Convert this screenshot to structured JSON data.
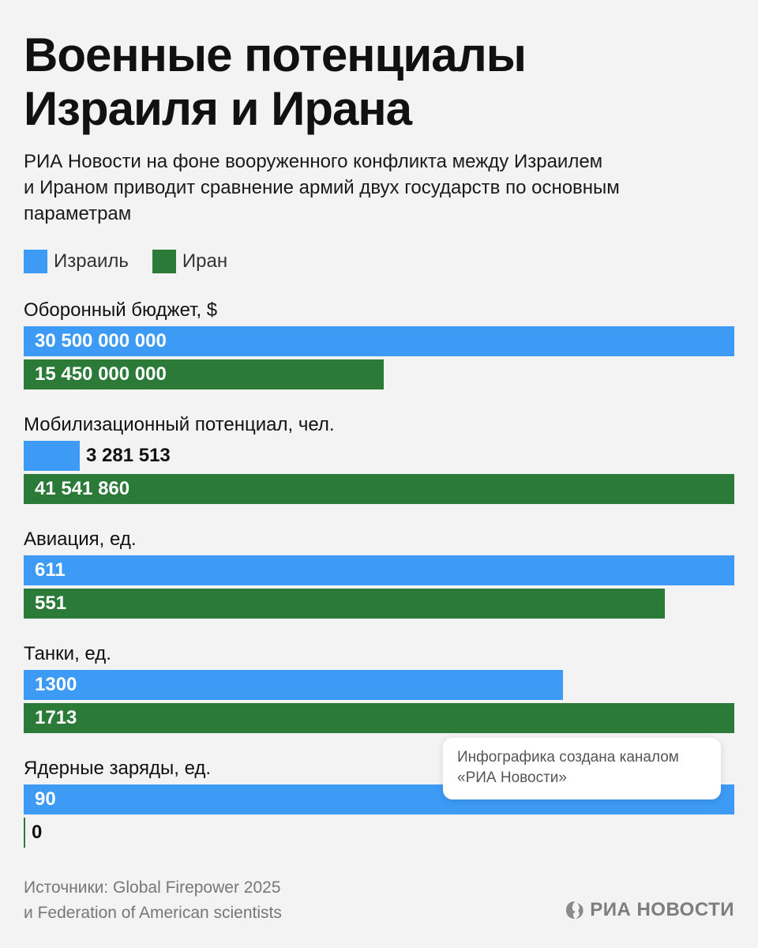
{
  "title_lines": [
    "Военные потенциалы",
    "Израиля и Ирана"
  ],
  "subtitle_lines": [
    "РИА Новости на фоне вооруженного конфликта между Израилем",
    "и Ираном приводит сравнение армий двух государств по основным",
    "параметрам"
  ],
  "colors": {
    "israel": "#3d9bf5",
    "iran": "#2b7a37",
    "background": "#f3f3f3"
  },
  "chart_data": {
    "type": "bar",
    "orientation": "horizontal",
    "legend_position": "top-left",
    "grid": false,
    "series": [
      {
        "name": "Израиль",
        "color": "#3d9bf5"
      },
      {
        "name": "Иран",
        "color": "#2b7a37"
      }
    ],
    "groups": [
      {
        "label": "Оборонный бюджет, $",
        "values": [
          30500000000,
          15450000000
        ],
        "labels": [
          "30 500 000 000",
          "15 450 000 000"
        ]
      },
      {
        "label": "Мобилизационный потенциал, чел.",
        "values": [
          3281513,
          41541860
        ],
        "labels": [
          "3 281 513",
          "41 541 860"
        ]
      },
      {
        "label": "Авиация, ед.",
        "values": [
          611,
          551
        ],
        "labels": [
          "611",
          "551"
        ]
      },
      {
        "label": "Танки, ед.",
        "values": [
          1300,
          1713
        ],
        "labels": [
          "1300",
          "1713"
        ]
      },
      {
        "label": "Ядерные заряды, ед.",
        "values": [
          90,
          0
        ],
        "labels": [
          "90",
          "0"
        ]
      }
    ]
  },
  "sources_lines": [
    "Источники: Global Firepower 2025",
    "и Federation of American scientists"
  ],
  "badge_lines": [
    "Инфографика создана каналом",
    "«РИА Новости»"
  ],
  "logo_text": "РИА НОВОСТИ"
}
